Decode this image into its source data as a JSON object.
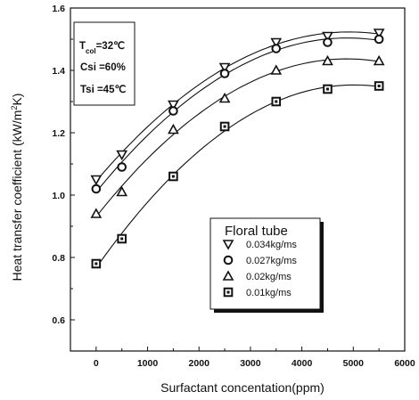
{
  "chart_data": {
    "type": "scatter",
    "xlabel": "Surfactant concentation(ppm)",
    "ylabel_prefix": "Heat transfer coefficient (kW/m",
    "ylabel_sup": "2",
    "ylabel_suffix": "K)",
    "xlim": [
      -500,
      6000
    ],
    "ylim": [
      0.5,
      1.6
    ],
    "xticks": [
      0,
      1000,
      2000,
      3000,
      4000,
      5000,
      6000
    ],
    "yticks": [
      0.6,
      0.8,
      1.0,
      1.2,
      1.4,
      1.6
    ],
    "ytick_labels": [
      "0.6",
      "0.8",
      "1.0",
      "1.2",
      "1.4",
      "1.6"
    ],
    "x": [
      0,
      500,
      1500,
      2500,
      3500,
      4500,
      5500
    ],
    "series": [
      {
        "name": "0.034kg/ms",
        "marker": "triangle-down",
        "values": [
          1.05,
          1.13,
          1.29,
          1.41,
          1.49,
          1.51,
          1.52
        ]
      },
      {
        "name": "0.027kg/ms",
        "marker": "circle",
        "values": [
          1.02,
          1.09,
          1.27,
          1.39,
          1.47,
          1.49,
          1.5
        ]
      },
      {
        "name": "0.02kg/ms",
        "marker": "triangle-up",
        "values": [
          0.94,
          1.01,
          1.21,
          1.31,
          1.4,
          1.43,
          1.43
        ]
      },
      {
        "name": "0.01kg/ms",
        "marker": "square",
        "values": [
          0.78,
          0.86,
          1.06,
          1.22,
          1.3,
          1.34,
          1.35
        ]
      }
    ],
    "annotation": {
      "line1_main": "T",
      "line1_sub": "col",
      "line1_rest": "=32℃",
      "line2": "Csi =60%",
      "line3": "Tsi =45℃"
    },
    "legend": {
      "title": "Floral tube",
      "position": "bottom-right"
    },
    "grid": false
  }
}
